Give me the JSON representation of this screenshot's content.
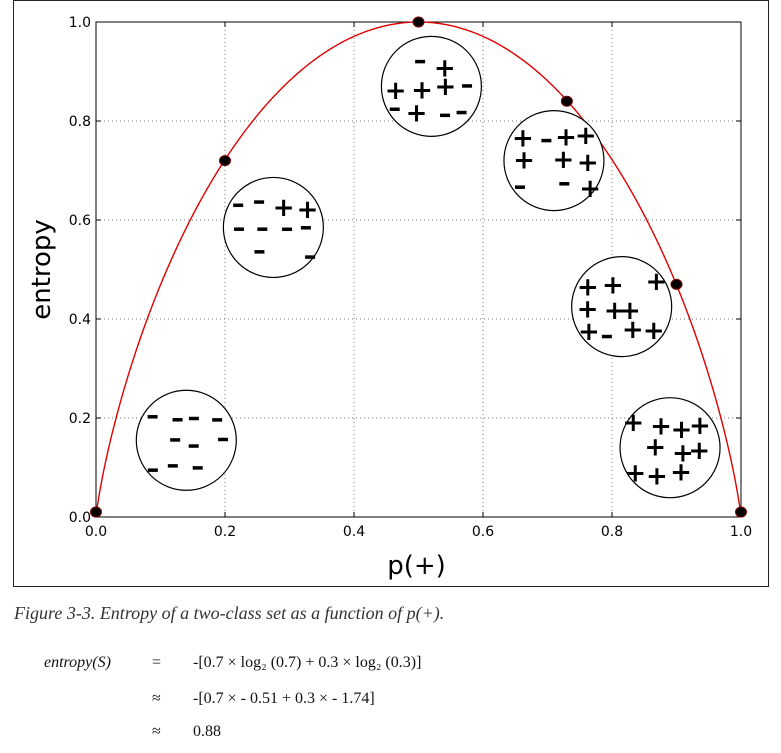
{
  "chart_data": {
    "type": "line",
    "xlabel": "p(+)",
    "ylabel": "entropy",
    "xlim": [
      0.0,
      1.0
    ],
    "ylim": [
      0.0,
      1.0
    ],
    "xticks": [
      "0.0",
      "0.2",
      "0.4",
      "0.6",
      "0.8",
      "1.0"
    ],
    "yticks": [
      "0.0",
      "0.2",
      "0.4",
      "0.6",
      "0.8",
      "1.0"
    ],
    "grid": true,
    "line_color": "#e00000",
    "marker_color": "#000000",
    "series": [
      {
        "curve": "binary entropy",
        "points": [
          {
            "x": 0.0,
            "y": 0.01
          },
          {
            "x": 0.2,
            "y": 0.72
          },
          {
            "x": 0.5,
            "y": 1.0
          },
          {
            "x": 0.73,
            "y": 0.84
          },
          {
            "x": 0.9,
            "y": 0.47
          },
          {
            "x": 1.0,
            "y": 0.01
          }
        ]
      }
    ],
    "annotations": [
      {
        "x": 0.14,
        "y": 0.155,
        "plus": 0,
        "minus": 10
      },
      {
        "x": 0.275,
        "y": 0.585,
        "plus": 2,
        "minus": 8
      },
      {
        "x": 0.52,
        "y": 0.87,
        "plus": 5,
        "minus": 5
      },
      {
        "x": 0.71,
        "y": 0.72,
        "plus": 7,
        "minus": 3
      },
      {
        "x": 0.815,
        "y": 0.425,
        "plus": 9,
        "minus": 1
      },
      {
        "x": 0.89,
        "y": 0.14,
        "plus": 10,
        "minus": 0
      }
    ]
  },
  "caption": "Figure 3-3. Entropy of a two-class set as a function of p(+).",
  "equation": [
    {
      "lhs": "entropy(S)",
      "rel": "=",
      "rhs": "-[0.7 × log₂ (0.7) + 0.3 × log₂ (0.3)]"
    },
    {
      "lhs": "",
      "rel": "≈",
      "rhs": "-[0.7 × - 0.51 + 0.3 × - 1.74]"
    },
    {
      "lhs": "",
      "rel": "≈",
      "rhs": "0.88"
    }
  ]
}
